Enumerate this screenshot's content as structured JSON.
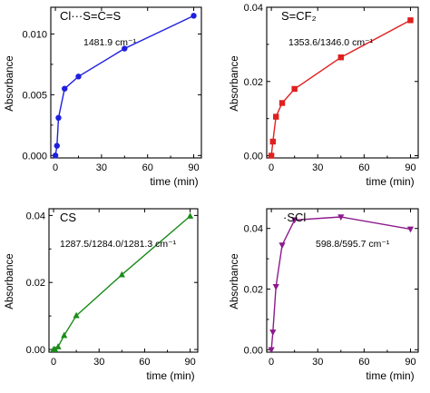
{
  "chart_data": [
    {
      "type": "line",
      "title": "Cl···S=C=S",
      "annotation": "1481.9 cm⁻¹",
      "xlabel": "time (min)",
      "ylabel": "Absorbance",
      "color": "#1f1fe0",
      "marker": "circle",
      "xlim": [
        -3,
        95
      ],
      "ylim": [
        -0.0002,
        0.0122
      ],
      "xticks": [
        0,
        30,
        60,
        90
      ],
      "yticks": [
        0.0,
        0.005,
        0.01
      ],
      "ytick_labels": [
        "0.000",
        "0.005",
        "0.010"
      ],
      "x": [
        0,
        1,
        2,
        6,
        15,
        45,
        90
      ],
      "y": [
        0.0,
        0.0008,
        0.0031,
        0.0055,
        0.0065,
        0.0088,
        0.0115
      ]
    },
    {
      "type": "line",
      "title": "S=CF₂",
      "annotation": "1353.6/1346.0 cm⁻¹",
      "xlabel": "time (min)",
      "ylabel": "Absorbance",
      "color": "#e01f1f",
      "marker": "square",
      "xlim": [
        -3,
        95
      ],
      "ylim": [
        -0.0006,
        0.04
      ],
      "xticks": [
        0,
        30,
        60,
        90
      ],
      "yticks": [
        0.0,
        0.02,
        0.04
      ],
      "ytick_labels": [
        "0.00",
        "0.02",
        "0.04"
      ],
      "x": [
        0,
        1,
        3,
        7,
        15,
        45,
        90
      ],
      "y": [
        0.0,
        0.0038,
        0.0105,
        0.0142,
        0.018,
        0.0265,
        0.0365
      ]
    },
    {
      "type": "line",
      "title": "CS",
      "annotation": "1287.5/1284.0/1281.3 cm⁻¹",
      "xlabel": "time (min)",
      "ylabel": "Absorbance",
      "color": "#1a8c1a",
      "marker": "triangle-up",
      "xlim": [
        -3,
        95
      ],
      "ylim": [
        -0.0008,
        0.042
      ],
      "xticks": [
        0,
        30,
        60,
        90
      ],
      "yticks": [
        0.0,
        0.02,
        0.04
      ],
      "ytick_labels": [
        "0.00",
        "0.02",
        "0.04"
      ],
      "x": [
        0,
        1,
        3,
        7,
        15,
        45,
        90
      ],
      "y": [
        0.0,
        0.0,
        0.0008,
        0.0042,
        0.0101,
        0.0223,
        0.0398
      ]
    },
    {
      "type": "line",
      "title": "·SCl",
      "annotation": "598.8/595.7 cm⁻¹",
      "xlabel": "time (min)",
      "ylabel": "Absorbance",
      "color": "#8c1a8c",
      "marker": "triangle-down",
      "xlim": [
        -3,
        95
      ],
      "ylim": [
        -0.0008,
        0.0465
      ],
      "xticks": [
        0,
        30,
        60,
        90
      ],
      "yticks": [
        0.0,
        0.02,
        0.04
      ],
      "ytick_labels": [
        "0.00",
        "0.02",
        "0.04"
      ],
      "x": [
        0,
        1,
        3,
        7,
        15,
        45,
        90
      ],
      "y": [
        0.0,
        0.0058,
        0.0208,
        0.0345,
        0.0428,
        0.0438,
        0.0398
      ]
    }
  ]
}
